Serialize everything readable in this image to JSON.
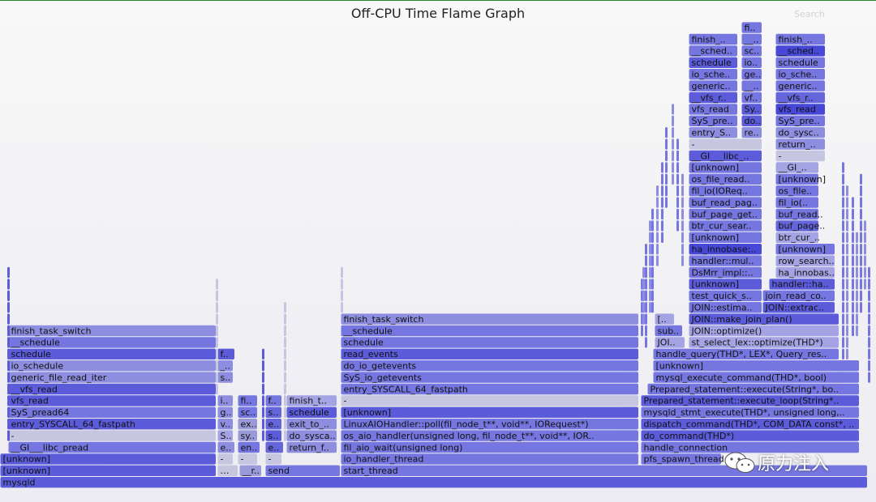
{
  "title": "Off-CPU Time Flame Graph",
  "search_label": "Search",
  "watermark": "原力注入",
  "colors": {
    "c0": "#8e8ee0",
    "c1": "#5c5cda",
    "c2": "#7676e0",
    "c3": "#a4a4e4",
    "c4": "#4848d8",
    "c5": "#6666dc",
    "c6": "#c6c6e0",
    "c7": "#9a9ad8"
  },
  "chart_data": {
    "type": "flame",
    "title": "Off-CPU Time Flame Graph",
    "frames": [
      {
        "label": "mysqld",
        "depth": 0,
        "x0": 0.0,
        "x1": 0.9907,
        "c": "c1"
      },
      {
        "label": "[unknown]",
        "depth": 1,
        "x0": 0.0,
        "x1": 0.2472,
        "c": "c1"
      },
      {
        "label": "…",
        "depth": 1,
        "x0": 0.2481,
        "x1": 0.2722,
        "c": "c6"
      },
      {
        "label": "__r..",
        "depth": 1,
        "x0": 0.2731,
        "x1": 0.2991,
        "c": "c7"
      },
      {
        "label": "send",
        "depth": 1,
        "x0": 0.3028,
        "x1": 0.3889,
        "c": "c2"
      },
      {
        "label": "start_thread",
        "depth": 1,
        "x0": 0.3889,
        "x1": 0.9907,
        "c": "c2"
      },
      {
        "label": "[unknown]",
        "depth": 2,
        "x0": 0.0,
        "x1": 0.2472,
        "c": "c1"
      },
      {
        "label": "-",
        "depth": 2,
        "x0": 0.2481,
        "x1": 0.2667,
        "c": "c6"
      },
      {
        "label": "-",
        "depth": 2,
        "x0": 0.2713,
        "x1": 0.2944,
        "c": "c6"
      },
      {
        "label": "-",
        "depth": 2,
        "x0": 0.3028,
        "x1": 0.3222,
        "c": "c6"
      },
      {
        "label": "io_handler_thread",
        "depth": 2,
        "x0": 0.3889,
        "x1": 0.7296,
        "c": "c2"
      },
      {
        "label": "pfs_spawn_thread",
        "depth": 2,
        "x0": 0.7315,
        "x1": 0.8241,
        "c": "c2"
      },
      {
        "label": "__GI___libc_pread",
        "depth": 3,
        "x0": 0.0093,
        "x1": 0.2472,
        "c": "c2"
      },
      {
        "label": "e..",
        "depth": 3,
        "x0": 0.2481,
        "x1": 0.2685,
        "c": "c0"
      },
      {
        "label": "en..",
        "depth": 3,
        "x0": 0.2713,
        "x1": 0.2972,
        "c": "c2"
      },
      {
        "label": "e..",
        "depth": 3,
        "x0": 0.3028,
        "x1": 0.3241,
        "c": "c5"
      },
      {
        "label": "return_f..",
        "depth": 3,
        "x0": 0.3269,
        "x1": 0.3852,
        "c": "c0"
      },
      {
        "label": "fil_aio_wait(unsigned long)",
        "depth": 3,
        "x0": 0.3889,
        "x1": 0.7296,
        "c": "c2"
      },
      {
        "label": "handle_connection",
        "depth": 3,
        "x0": 0.7315,
        "x1": 0.9815,
        "c": "c2"
      },
      {
        "label": "-",
        "depth": 4,
        "x0": 0.0093,
        "x1": 0.2472,
        "c": "c6"
      },
      {
        "label": "S..",
        "depth": 4,
        "x0": 0.2481,
        "x1": 0.2667,
        "c": "c3"
      },
      {
        "label": "sy..",
        "depth": 4,
        "x0": 0.2713,
        "x1": 0.2944,
        "c": "c7"
      },
      {
        "label": "s..",
        "depth": 4,
        "x0": 0.3028,
        "x1": 0.3222,
        "c": "c1"
      },
      {
        "label": "do_sysca..",
        "depth": 4,
        "x0": 0.3269,
        "x1": 0.3852,
        "c": "c0"
      },
      {
        "label": "os_aio_handler(unsigned long, fil_node_t**, void**, IOR..",
        "depth": 4,
        "x0": 0.3889,
        "x1": 0.7296,
        "c": "c2"
      },
      {
        "label": "do_command(THD*)",
        "depth": 4,
        "x0": 0.7315,
        "x1": 0.9815,
        "c": "c1"
      },
      {
        "label": "entry_SYSCALL_64_fastpath",
        "depth": 5,
        "x0": 0.0093,
        "x1": 0.2472,
        "c": "c1"
      },
      {
        "label": "v..",
        "depth": 5,
        "x0": 0.2481,
        "x1": 0.2667,
        "c": "c0"
      },
      {
        "label": "ex..",
        "depth": 5,
        "x0": 0.2713,
        "x1": 0.2944,
        "c": "c7"
      },
      {
        "label": "e..",
        "depth": 5,
        "x0": 0.3028,
        "x1": 0.3222,
        "c": "c5"
      },
      {
        "label": "exit_to_..",
        "depth": 5,
        "x0": 0.3269,
        "x1": 0.3852,
        "c": "c0"
      },
      {
        "label": "LinuxAIOHandler::poll(fil_node_t**, void**, IORequest*)",
        "depth": 5,
        "x0": 0.3889,
        "x1": 0.7296,
        "c": "c2"
      },
      {
        "label": "dispatch_command(THD*, COM_DATA const*, ..",
        "depth": 5,
        "x0": 0.7315,
        "x1": 0.9815,
        "c": "c1"
      },
      {
        "label": "SyS_pread64",
        "depth": 6,
        "x0": 0.0093,
        "x1": 0.2472,
        "c": "c2"
      },
      {
        "label": "g..",
        "depth": 6,
        "x0": 0.2481,
        "x1": 0.2667,
        "c": "c0"
      },
      {
        "label": "sc..",
        "depth": 6,
        "x0": 0.2713,
        "x1": 0.2944,
        "c": "c2"
      },
      {
        "label": "s..",
        "depth": 6,
        "x0": 0.3028,
        "x1": 0.3222,
        "c": "c5"
      },
      {
        "label": "schedule",
        "depth": 6,
        "x0": 0.3269,
        "x1": 0.3852,
        "c": "c1"
      },
      {
        "label": "[unknown]",
        "depth": 6,
        "x0": 0.3889,
        "x1": 0.7296,
        "c": "c1"
      },
      {
        "label": "mysqld_stmt_execute(THD*, unsigned long,..",
        "depth": 6,
        "x0": 0.7315,
        "x1": 0.9815,
        "c": "c2"
      },
      {
        "label": "vfs_read",
        "depth": 7,
        "x0": 0.0093,
        "x1": 0.2472,
        "c": "c1"
      },
      {
        "label": "i..",
        "depth": 7,
        "x0": 0.2481,
        "x1": 0.2667,
        "c": "c0"
      },
      {
        "label": "fi..",
        "depth": 7,
        "x0": 0.2713,
        "x1": 0.2944,
        "c": "c2"
      },
      {
        "label": "f..",
        "depth": 7,
        "x0": 0.3028,
        "x1": 0.3222,
        "c": "c2"
      },
      {
        "label": "finish_t..",
        "depth": 7,
        "x0": 0.3269,
        "x1": 0.3852,
        "c": "c3"
      },
      {
        "label": "-",
        "depth": 7,
        "x0": 0.3889,
        "x1": 0.7296,
        "c": "c6"
      },
      {
        "label": "Prepared_statement::execute_loop(String*..",
        "depth": 7,
        "x0": 0.7315,
        "x1": 0.9815,
        "c": "c1"
      },
      {
        "label": "__vfs_read",
        "depth": 8,
        "x0": 0.0093,
        "x1": 0.2472,
        "c": "c1"
      },
      {
        "label": "entry_SYSCALL_64_fastpath",
        "depth": 8,
        "x0": 0.3889,
        "x1": 0.7296,
        "c": "c2"
      },
      {
        "label": "Prepared_statement::execute(String*, bo..",
        "depth": 8,
        "x0": 0.7389,
        "x1": 0.9815,
        "c": "c2"
      },
      {
        "label": "generic_file_read_iter",
        "depth": 9,
        "x0": 0.0093,
        "x1": 0.2472,
        "c": "c0"
      },
      {
        "label": "s..",
        "depth": 9,
        "x0": 0.2481,
        "x1": 0.2667,
        "c": "c0"
      },
      {
        "label": "SyS_io_getevents",
        "depth": 9,
        "x0": 0.3889,
        "x1": 0.7296,
        "c": "c2"
      },
      {
        "label": "mysql_execute_command(THD*, bool)",
        "depth": 9,
        "x0": 0.7454,
        "x1": 0.9815,
        "c": "c2"
      },
      {
        "label": "io_schedule",
        "depth": 10,
        "x0": 0.0093,
        "x1": 0.2472,
        "c": "c0"
      },
      {
        "label": "_..",
        "depth": 10,
        "x0": 0.2481,
        "x1": 0.2667,
        "c": "c0"
      },
      {
        "label": "do_io_getevents",
        "depth": 10,
        "x0": 0.3889,
        "x1": 0.7296,
        "c": "c2"
      },
      {
        "label": "[unknown]",
        "depth": 10,
        "x0": 0.7454,
        "x1": 0.9815,
        "c": "c2"
      },
      {
        "label": "schedule",
        "depth": 11,
        "x0": 0.0093,
        "x1": 0.2472,
        "c": "c1"
      },
      {
        "label": "f..",
        "depth": 11,
        "x0": 0.2481,
        "x1": 0.2685,
        "c": "c1"
      },
      {
        "label": "read_events",
        "depth": 11,
        "x0": 0.3889,
        "x1": 0.7296,
        "c": "c1"
      },
      {
        "label": "handle_query(THD*, LEX*, Query_res..",
        "depth": 11,
        "x0": 0.7454,
        "x1": 0.9583,
        "c": "c2"
      },
      {
        "label": "__schedule",
        "depth": 12,
        "x0": 0.0093,
        "x1": 0.2472,
        "c": "c2"
      },
      {
        "label": "schedule",
        "depth": 12,
        "x0": 0.3889,
        "x1": 0.7296,
        "c": "c2"
      },
      {
        "label": "JOI..",
        "depth": 12,
        "x0": 0.7472,
        "x1": 0.7824,
        "c": "c3"
      },
      {
        "label": "st_select_lex::optimize(THD*)",
        "depth": 12,
        "x0": 0.7861,
        "x1": 0.9583,
        "c": "c3"
      },
      {
        "label": "finish_task_switch",
        "depth": 13,
        "x0": 0.0093,
        "x1": 0.2472,
        "c": "c0"
      },
      {
        "label": "__schedule",
        "depth": 13,
        "x0": 0.3889,
        "x1": 0.7296,
        "c": "c2"
      },
      {
        "label": "sub..",
        "depth": 13,
        "x0": 0.7472,
        "x1": 0.7796,
        "c": "c2"
      },
      {
        "label": "JOIN::optimize()",
        "depth": 13,
        "x0": 0.7861,
        "x1": 0.9583,
        "c": "c3"
      },
      {
        "label": "finish_task_switch",
        "depth": 14,
        "x0": 0.3889,
        "x1": 0.7296,
        "c": "c0"
      },
      {
        "label": "[..",
        "depth": 14,
        "x0": 0.7472,
        "x1": 0.7704,
        "c": "c3"
      },
      {
        "label": "JOIN::make_join_plan()",
        "depth": 14,
        "x0": 0.7861,
        "x1": 0.9583,
        "c": "c1"
      },
      {
        "label": "JOIN::estima..",
        "depth": 15,
        "x0": 0.7861,
        "x1": 0.8704,
        "c": "c2"
      },
      {
        "label": "JOIN::extrac..",
        "depth": 15,
        "x0": 0.8704,
        "x1": 0.9537,
        "c": "c1"
      },
      {
        "label": "test_quick_s..",
        "depth": 16,
        "x0": 0.7861,
        "x1": 0.8704,
        "c": "c2"
      },
      {
        "label": "join_read_co..",
        "depth": 16,
        "x0": 0.8704,
        "x1": 0.9537,
        "c": "c2"
      },
      {
        "label": "[unknown]",
        "depth": 17,
        "x0": 0.7861,
        "x1": 0.8704,
        "c": "c1"
      },
      {
        "label": "handler::ha..",
        "depth": 17,
        "x0": 0.8778,
        "x1": 0.9537,
        "c": "c1"
      },
      {
        "label": "DsMrr_impl::..",
        "depth": 18,
        "x0": 0.7861,
        "x1": 0.8704,
        "c": "c2"
      },
      {
        "label": "ha_innobas..",
        "depth": 18,
        "x0": 0.8852,
        "x1": 0.9537,
        "c": "c3"
      },
      {
        "label": "handler::mul..",
        "depth": 19,
        "x0": 0.7861,
        "x1": 0.8704,
        "c": "c2"
      },
      {
        "label": "row_search..",
        "depth": 19,
        "x0": 0.8852,
        "x1": 0.9537,
        "c": "c3"
      },
      {
        "label": "ha_innobase:..",
        "depth": 20,
        "x0": 0.7861,
        "x1": 0.8704,
        "c": "c4"
      },
      {
        "label": "[unknown]",
        "depth": 20,
        "x0": 0.8852,
        "x1": 0.9537,
        "c": "c2"
      },
      {
        "label": "[unknown]",
        "depth": 21,
        "x0": 0.7861,
        "x1": 0.8704,
        "c": "c2"
      },
      {
        "label": "btr_cur_..",
        "depth": 21,
        "x0": 0.8852,
        "x1": 0.9352,
        "c": "c3"
      },
      {
        "label": "btr_cur_sear..",
        "depth": 22,
        "x0": 0.7861,
        "x1": 0.8704,
        "c": "c2"
      },
      {
        "label": "buf_page..",
        "depth": 22,
        "x0": 0.8852,
        "x1": 0.9352,
        "c": "c5"
      },
      {
        "label": "buf_page_get..",
        "depth": 23,
        "x0": 0.7861,
        "x1": 0.8704,
        "c": "c2"
      },
      {
        "label": "buf_read..",
        "depth": 23,
        "x0": 0.8852,
        "x1": 0.9352,
        "c": "c2"
      },
      {
        "label": "buf_read_pag..",
        "depth": 24,
        "x0": 0.7861,
        "x1": 0.8704,
        "c": "c2"
      },
      {
        "label": "fil_io(..",
        "depth": 24,
        "x0": 0.8852,
        "x1": 0.9352,
        "c": "c2"
      },
      {
        "label": "fil_io(IOReq..",
        "depth": 25,
        "x0": 0.7861,
        "x1": 0.8704,
        "c": "c2"
      },
      {
        "label": "os_file..",
        "depth": 25,
        "x0": 0.8852,
        "x1": 0.9352,
        "c": "c2"
      },
      {
        "label": "os_file_read..",
        "depth": 26,
        "x0": 0.7861,
        "x1": 0.8704,
        "c": "c2"
      },
      {
        "label": "[unknown]",
        "depth": 26,
        "x0": 0.8852,
        "x1": 0.9352,
        "c": "c2"
      },
      {
        "label": "[unknown]",
        "depth": 27,
        "x0": 0.7861,
        "x1": 0.8704,
        "c": "c2"
      },
      {
        "label": "__GI_..",
        "depth": 27,
        "x0": 0.8852,
        "x1": 0.9352,
        "c": "c3"
      },
      {
        "label": "__GI___libc_..",
        "depth": 28,
        "x0": 0.7861,
        "x1": 0.8704,
        "c": "c1"
      },
      {
        "label": "-",
        "depth": 28,
        "x0": 0.8852,
        "x1": 0.9426,
        "c": "c6"
      },
      {
        "label": "-",
        "depth": 29,
        "x0": 0.7861,
        "x1": 0.8704,
        "c": "c6"
      },
      {
        "label": "return_..",
        "depth": 29,
        "x0": 0.8852,
        "x1": 0.9426,
        "c": "c0"
      },
      {
        "label": "entry_S..",
        "depth": 30,
        "x0": 0.7861,
        "x1": 0.8426,
        "c": "c0"
      },
      {
        "label": "re..",
        "depth": 30,
        "x0": 0.8463,
        "x1": 0.8704,
        "c": "c0"
      },
      {
        "label": "do_sysc..",
        "depth": 30,
        "x0": 0.8852,
        "x1": 0.9426,
        "c": "c0"
      },
      {
        "label": "SyS_pre..",
        "depth": 31,
        "x0": 0.7861,
        "x1": 0.8426,
        "c": "c2"
      },
      {
        "label": "do..",
        "depth": 31,
        "x0": 0.8463,
        "x1": 0.8704,
        "c": "c1"
      },
      {
        "label": "SyS_pre..",
        "depth": 31,
        "x0": 0.8852,
        "x1": 0.9426,
        "c": "c2"
      },
      {
        "label": "vfs_read",
        "depth": 32,
        "x0": 0.7861,
        "x1": 0.8426,
        "c": "c2"
      },
      {
        "label": "Sy..",
        "depth": 32,
        "x0": 0.8463,
        "x1": 0.8704,
        "c": "c1"
      },
      {
        "label": "vfs_read",
        "depth": 32,
        "x0": 0.8852,
        "x1": 0.9426,
        "c": "c4"
      },
      {
        "label": "__vfs_r..",
        "depth": 33,
        "x0": 0.7861,
        "x1": 0.8426,
        "c": "c1"
      },
      {
        "label": "vf..",
        "depth": 33,
        "x0": 0.8463,
        "x1": 0.8704,
        "c": "c2"
      },
      {
        "label": "__vfs_r..",
        "depth": 33,
        "x0": 0.8852,
        "x1": 0.9426,
        "c": "c5"
      },
      {
        "label": "generic..",
        "depth": 34,
        "x0": 0.7861,
        "x1": 0.8426,
        "c": "c2"
      },
      {
        "label": "__..",
        "depth": 34,
        "x0": 0.8463,
        "x1": 0.8704,
        "c": "c2"
      },
      {
        "label": "generic..",
        "depth": 34,
        "x0": 0.8852,
        "x1": 0.9426,
        "c": "c2"
      },
      {
        "label": "io_sche..",
        "depth": 35,
        "x0": 0.7861,
        "x1": 0.8426,
        "c": "c2"
      },
      {
        "label": "ge..",
        "depth": 35,
        "x0": 0.8463,
        "x1": 0.8704,
        "c": "c2"
      },
      {
        "label": "io_sche..",
        "depth": 35,
        "x0": 0.8852,
        "x1": 0.9426,
        "c": "c2"
      },
      {
        "label": "schedule",
        "depth": 36,
        "x0": 0.7861,
        "x1": 0.8426,
        "c": "c1"
      },
      {
        "label": "io..",
        "depth": 36,
        "x0": 0.8463,
        "x1": 0.8704,
        "c": "c2"
      },
      {
        "label": "schedule",
        "depth": 36,
        "x0": 0.8852,
        "x1": 0.9426,
        "c": "c2"
      },
      {
        "label": "__sched..",
        "depth": 37,
        "x0": 0.7861,
        "x1": 0.8426,
        "c": "c2"
      },
      {
        "label": "sc..",
        "depth": 37,
        "x0": 0.8463,
        "x1": 0.8704,
        "c": "c2"
      },
      {
        "label": "__sched..",
        "depth": 37,
        "x0": 0.8852,
        "x1": 0.9426,
        "c": "c4"
      },
      {
        "label": "finish_..",
        "depth": 38,
        "x0": 0.7861,
        "x1": 0.8426,
        "c": "c2"
      },
      {
        "label": "__..",
        "depth": 38,
        "x0": 0.8463,
        "x1": 0.8704,
        "c": "c2"
      },
      {
        "label": "finish_..",
        "depth": 38,
        "x0": 0.8852,
        "x1": 0.9426,
        "c": "c2"
      },
      {
        "label": "fi..",
        "depth": 39,
        "x0": 0.8463,
        "x1": 0.8704,
        "c": "c2"
      }
    ],
    "thin_frames": [
      {
        "x": 0.0083,
        "from": 4,
        "to": 18,
        "c": "c1"
      },
      {
        "x": 0.2463,
        "from": 8,
        "to": 17,
        "c": "c6"
      },
      {
        "x": 0.2991,
        "from": 4,
        "to": 11,
        "c": "c1"
      },
      {
        "x": 0.3241,
        "from": 4,
        "to": 15,
        "c": "c6"
      },
      {
        "x": 0.3889,
        "from": 15,
        "to": 18,
        "c": "c6"
      },
      {
        "x": 0.7315,
        "from": 13,
        "to": 17,
        "c": "c2"
      },
      {
        "x": 0.7333,
        "from": 14,
        "to": 18,
        "c": "c0"
      },
      {
        "x": 0.7361,
        "from": 12,
        "to": 20,
        "c": "c2"
      },
      {
        "x": 0.7407,
        "from": 15,
        "to": 22,
        "c": "c0"
      },
      {
        "x": 0.7435,
        "from": 15,
        "to": 23,
        "c": "c2"
      },
      {
        "x": 0.7491,
        "from": 19,
        "to": 25,
        "c": "c0"
      },
      {
        "x": 0.7546,
        "from": 21,
        "to": 27,
        "c": "c2"
      },
      {
        "x": 0.7593,
        "from": 24,
        "to": 30,
        "c": "c2"
      },
      {
        "x": 0.7667,
        "from": 26,
        "to": 32,
        "c": "c0"
      },
      {
        "x": 0.7722,
        "from": 22,
        "to": 29,
        "c": "c2"
      },
      {
        "x": 0.7778,
        "from": 19,
        "to": 26,
        "c": "c0"
      },
      {
        "x": 0.9611,
        "from": 9,
        "to": 27,
        "c": "c2"
      },
      {
        "x": 0.9657,
        "from": 11,
        "to": 25,
        "c": "c0"
      },
      {
        "x": 0.9722,
        "from": 13,
        "to": 24,
        "c": "c2"
      },
      {
        "x": 0.9769,
        "from": 13,
        "to": 21,
        "c": "c0"
      },
      {
        "x": 0.9815,
        "from": 15,
        "to": 26,
        "c": "c2"
      },
      {
        "x": 0.9861,
        "from": 17,
        "to": 22,
        "c": "c0"
      },
      {
        "x": 0.9907,
        "from": 9,
        "to": 18,
        "c": "c2"
      }
    ]
  }
}
